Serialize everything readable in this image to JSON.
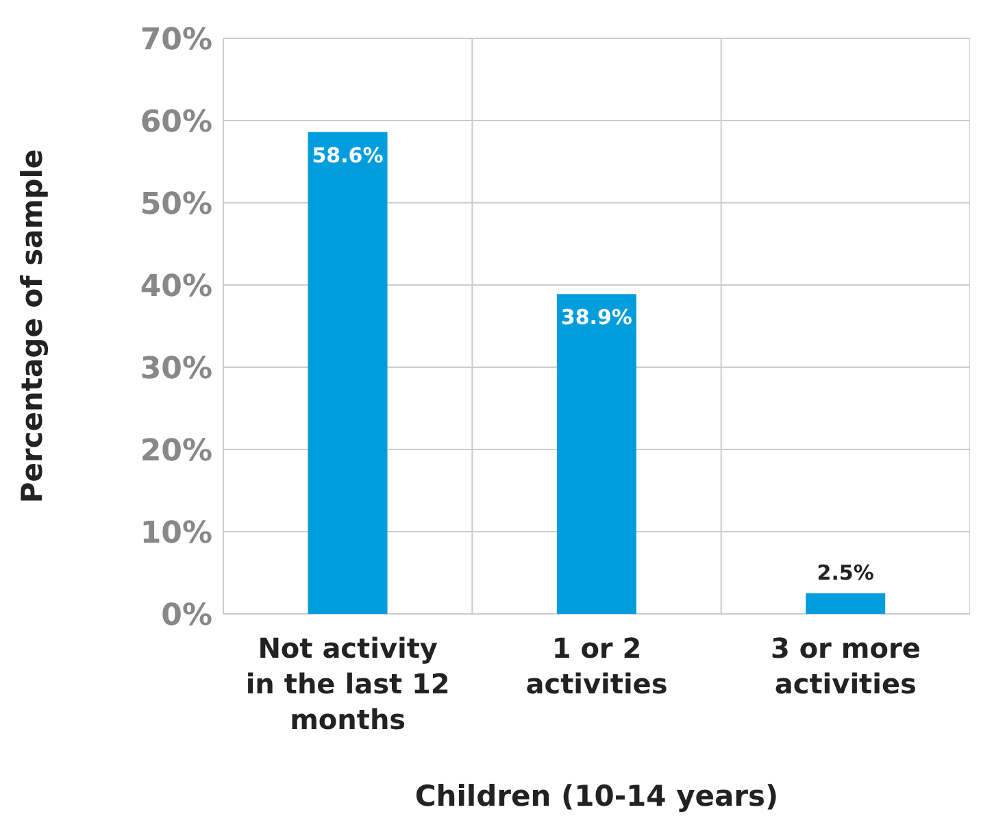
{
  "chart_data": {
    "type": "bar",
    "xlabel": "Children (10-14 years)",
    "ylabel": "Percentage of sample",
    "categories": [
      "Not activity in the last 12 months",
      "1 or 2 activities",
      "3 or more activities"
    ],
    "values": [
      58.6,
      38.9,
      2.5
    ],
    "color": "#009ddc",
    "value_labels": [
      "58.6%",
      "38.9%",
      "2.5%"
    ],
    "ylim": [
      0,
      70
    ],
    "yticks": [
      {
        "value": 0,
        "label": "0%"
      },
      {
        "value": 10,
        "label": "10%"
      },
      {
        "value": 20,
        "label": "20%"
      },
      {
        "value": 30,
        "label": "30%"
      },
      {
        "value": 40,
        "label": "40%"
      },
      {
        "value": 50,
        "label": "50%"
      },
      {
        "value": 60,
        "label": "60%"
      },
      {
        "value": 70,
        "label": "70%"
      }
    ],
    "grid": true
  }
}
